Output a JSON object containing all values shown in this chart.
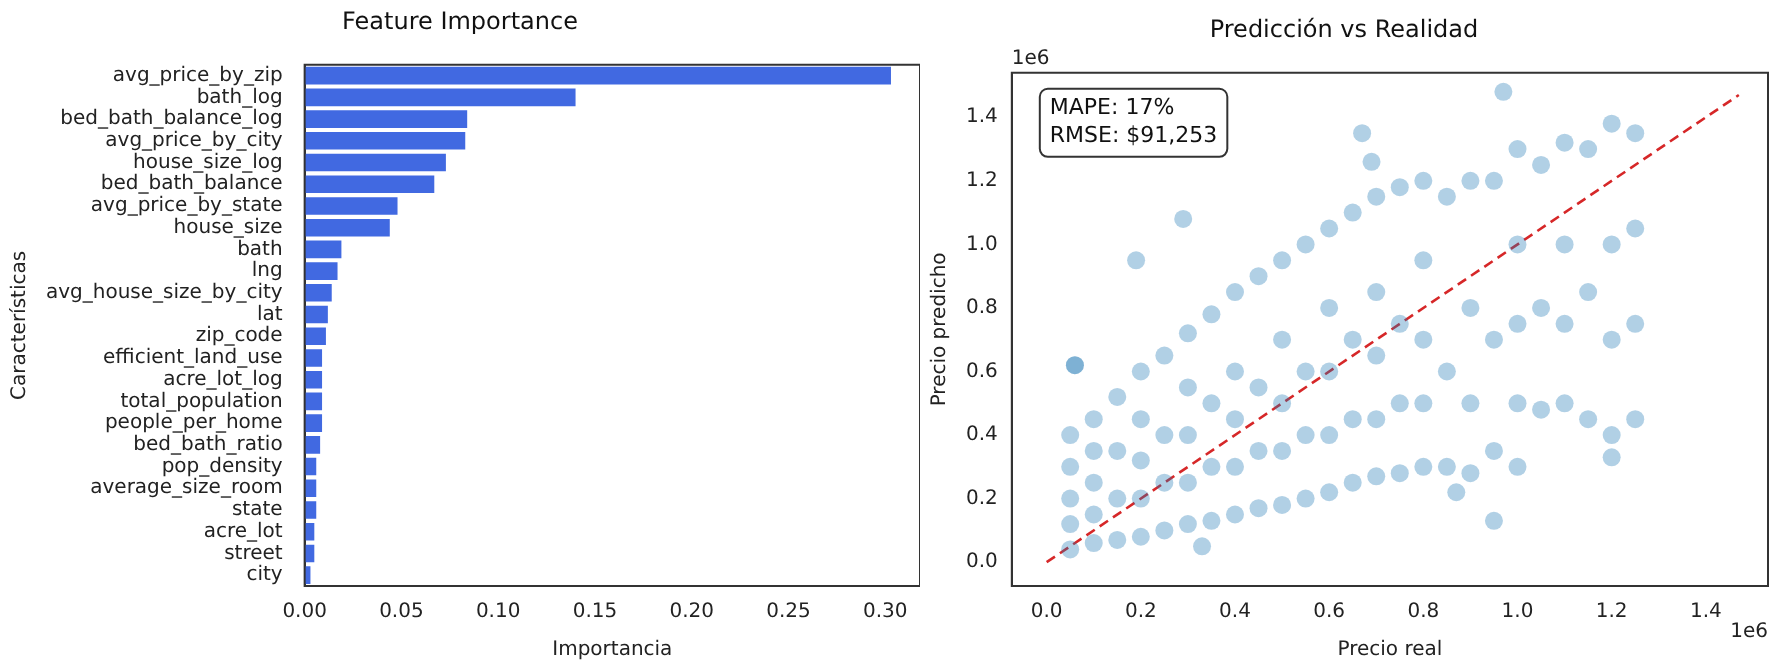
{
  "chart_data": [
    {
      "type": "bar",
      "orientation": "horizontal",
      "title": "Feature Importance",
      "xlabel": "Importancia",
      "ylabel": "Características",
      "categories": [
        "avg_price_by_zip",
        "bath_log",
        "bed_bath_balance_log",
        "avg_price_by_city",
        "house_size_log",
        "bed_bath_balance",
        "avg_price_by_state",
        "house_size",
        "bath",
        "lng",
        "avg_house_size_by_city",
        "lat",
        "zip_code",
        "efficient_land_use",
        "acre_lot_log",
        "total_population",
        "people_per_home",
        "bed_bath_ratio",
        "pop_density",
        "average_size_room",
        "state",
        "acre_lot",
        "street",
        "city"
      ],
      "values": [
        0.303,
        0.14,
        0.084,
        0.083,
        0.073,
        0.067,
        0.048,
        0.044,
        0.019,
        0.017,
        0.014,
        0.012,
        0.011,
        0.009,
        0.009,
        0.009,
        0.009,
        0.008,
        0.006,
        0.006,
        0.006,
        0.005,
        0.005,
        0.003
      ],
      "color": "#4169e1",
      "xlim": [
        0,
        0.318
      ],
      "xticks": [
        {
          "value": 0,
          "label": "0.00"
        },
        {
          "value": 0.05,
          "label": "0.05"
        },
        {
          "value": 0.1,
          "label": "0.10"
        },
        {
          "value": 0.15,
          "label": "0.15"
        },
        {
          "value": 0.2,
          "label": "0.20"
        },
        {
          "value": 0.25,
          "label": "0.25"
        },
        {
          "value": 0.3,
          "label": "0.30"
        }
      ],
      "grid": false,
      "legend": false
    },
    {
      "type": "scatter",
      "title": "Predicción vs Realidad",
      "xlabel": "Precio real",
      "ylabel": "Precio predicho",
      "marker": "circle",
      "annotations": [
        "MAPE: 17%\nRMSE: $91,253",
        "1e6",
        "1e6"
      ],
      "xlim": [
        -0.074,
        1.532
      ],
      "ylim": [
        -0.075,
        1.54
      ],
      "xticks": [
        {
          "value": 0,
          "label": "0.0"
        },
        0.2,
        0.4,
        0.6,
        0.8,
        {
          "value": 1,
          "label": "1.0"
        },
        1.2,
        1.4
      ],
      "yticks": [
        {
          "value": 0,
          "label": "0.0"
        },
        0.2,
        0.4,
        0.6,
        0.8,
        {
          "value": 1,
          "label": "1.0"
        },
        1.2,
        1.4
      ],
      "grid": false,
      "legend": false,
      "series": [
        {
          "type": "scatter",
          "color": "#1f77b4",
          "x": [
            0.05,
            0.05,
            0.05,
            0.05,
            0.05,
            0.06,
            0.1,
            0.1,
            0.1,
            0.1,
            0.1,
            0.15,
            0.15,
            0.15,
            0.15,
            0.2,
            0.2,
            0.2,
            0.2,
            0.2,
            0.25,
            0.25,
            0.25,
            0.25,
            0.3,
            0.3,
            0.3,
            0.3,
            0.3,
            0.35,
            0.35,
            0.35,
            0.35,
            0.4,
            0.4,
            0.4,
            0.4,
            0.4,
            0.45,
            0.45,
            0.45,
            0.45,
            0.5,
            0.5,
            0.5,
            0.5,
            0.5,
            0.55,
            0.55,
            0.55,
            0.55,
            0.6,
            0.6,
            0.6,
            0.6,
            0.6,
            0.65,
            0.65,
            0.65,
            0.65,
            0.7,
            0.7,
            0.7,
            0.7,
            0.7,
            0.75,
            0.75,
            0.75,
            0.75,
            0.8,
            0.8,
            0.8,
            0.8,
            0.8,
            0.85,
            0.85,
            0.85,
            0.9,
            0.9,
            0.9,
            0.9,
            0.95,
            0.95,
            0.95,
            1.0,
            1.0,
            1.0,
            1.0,
            1.0,
            1.05,
            1.05,
            1.05,
            1.1,
            1.1,
            1.1,
            1.1,
            1.15,
            1.15,
            1.15,
            1.2,
            1.2,
            1.2,
            1.2,
            1.25,
            1.25,
            1.25,
            1.25,
            0.97,
            0.67,
            0.69,
            0.29,
            0.19,
            0.95,
            0.87,
            1.2,
            0.06,
            0.33
          ],
          "values": [
            0.04,
            0.12,
            0.2,
            0.3,
            0.4,
            0.62,
            0.06,
            0.15,
            0.25,
            0.35,
            0.45,
            0.07,
            0.2,
            0.35,
            0.52,
            0.08,
            0.2,
            0.32,
            0.45,
            0.6,
            0.1,
            0.25,
            0.4,
            0.65,
            0.12,
            0.25,
            0.4,
            0.55,
            0.72,
            0.13,
            0.3,
            0.5,
            0.78,
            0.15,
            0.3,
            0.45,
            0.6,
            0.85,
            0.17,
            0.35,
            0.55,
            0.9,
            0.18,
            0.35,
            0.5,
            0.7,
            0.95,
            0.2,
            0.4,
            0.6,
            1.0,
            0.22,
            0.4,
            0.6,
            0.8,
            1.05,
            0.25,
            0.45,
            0.7,
            1.1,
            0.27,
            0.45,
            0.65,
            0.85,
            1.15,
            0.28,
            0.5,
            0.75,
            1.18,
            0.3,
            0.5,
            0.7,
            0.95,
            1.2,
            0.3,
            0.6,
            1.15,
            0.28,
            0.5,
            0.8,
            1.2,
            0.35,
            0.7,
            1.2,
            0.3,
            0.5,
            0.75,
            1.0,
            1.3,
            0.48,
            0.8,
            1.25,
            0.5,
            0.75,
            1.0,
            1.32,
            0.45,
            0.85,
            1.3,
            0.4,
            0.7,
            1.0,
            1.38,
            0.45,
            0.75,
            1.05,
            1.35,
            1.48,
            1.35,
            1.26,
            1.08,
            0.95,
            0.13,
            0.22,
            0.33,
            0.62,
            0.05
          ]
        },
        {
          "type": "line",
          "color": "#d62728",
          "line_style": "dashed",
          "marker": "none",
          "x": [
            0,
            1.47
          ],
          "values": [
            0,
            1.47
          ]
        }
      ]
    }
  ]
}
